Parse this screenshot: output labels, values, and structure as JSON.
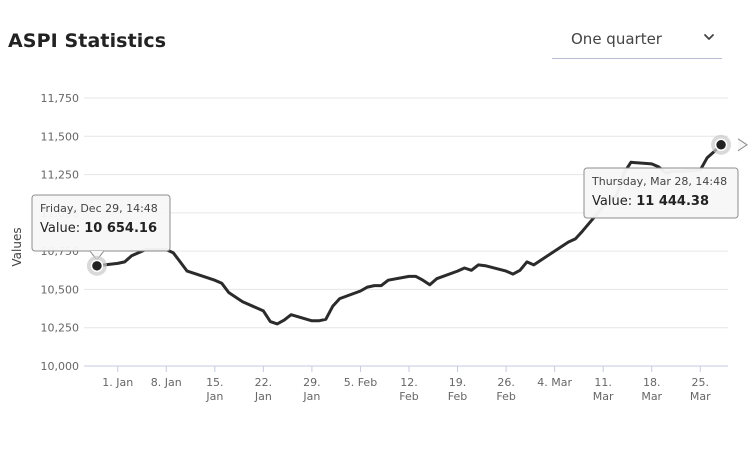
{
  "header": {
    "title": "ASPI Statistics",
    "period_selected": "One quarter",
    "period_icon": "chevron-down-icon"
  },
  "chart_data": {
    "type": "line",
    "title": "ASPI Statistics",
    "xlabel": "",
    "ylabel": "Values",
    "ylim": [
      10000,
      11750
    ],
    "yticks": [
      10000,
      10250,
      10500,
      10750,
      11000,
      11250,
      11500,
      11750
    ],
    "ytick_labels": [
      "10,000",
      "10,250",
      "10,500",
      "10,750",
      "11,000",
      "11,250",
      "11,500",
      "11,750"
    ],
    "xlim": [
      "2023-12-28",
      "2024-03-29"
    ],
    "xticks": [
      {
        "date": "2024-01-01",
        "line1": "1. Jan",
        "line2": ""
      },
      {
        "date": "2024-01-08",
        "line1": "8. Jan",
        "line2": ""
      },
      {
        "date": "2024-01-15",
        "line1": "15.",
        "line2": "Jan"
      },
      {
        "date": "2024-01-22",
        "line1": "22.",
        "line2": "Jan"
      },
      {
        "date": "2024-01-29",
        "line1": "29.",
        "line2": "Jan"
      },
      {
        "date": "2024-02-05",
        "line1": "5. Feb",
        "line2": ""
      },
      {
        "date": "2024-02-12",
        "line1": "12.",
        "line2": "Feb"
      },
      {
        "date": "2024-02-19",
        "line1": "19.",
        "line2": "Feb"
      },
      {
        "date": "2024-02-26",
        "line1": "26.",
        "line2": "Feb"
      },
      {
        "date": "2024-03-04",
        "line1": "4. Mar",
        "line2": ""
      },
      {
        "date": "2024-03-11",
        "line1": "11.",
        "line2": "Mar"
      },
      {
        "date": "2024-03-18",
        "line1": "18.",
        "line2": "Mar"
      },
      {
        "date": "2024-03-25",
        "line1": "25.",
        "line2": "Mar"
      }
    ],
    "grid": true,
    "legend": "none",
    "line_color": "#2b2b2b",
    "series": [
      {
        "points": [
          [
            "2023-12-29",
            10654.16
          ],
          [
            "2024-01-01",
            10670
          ],
          [
            "2024-01-02",
            10680
          ],
          [
            "2024-01-03",
            10720
          ],
          [
            "2024-01-04",
            10740
          ],
          [
            "2024-01-05",
            10760
          ],
          [
            "2024-01-08",
            10760
          ],
          [
            "2024-01-09",
            10740
          ],
          [
            "2024-01-10",
            10680
          ],
          [
            "2024-01-11",
            10620
          ],
          [
            "2024-01-12",
            10605
          ],
          [
            "2024-01-15",
            10560
          ],
          [
            "2024-01-16",
            10540
          ],
          [
            "2024-01-17",
            10480
          ],
          [
            "2024-01-18",
            10450
          ],
          [
            "2024-01-19",
            10420
          ],
          [
            "2024-01-22",
            10360
          ],
          [
            "2024-01-23",
            10290
          ],
          [
            "2024-01-24",
            10275
          ],
          [
            "2024-01-25",
            10300
          ],
          [
            "2024-01-26",
            10335
          ],
          [
            "2024-01-29",
            10295
          ],
          [
            "2024-01-30",
            10295
          ],
          [
            "2024-01-31",
            10305
          ],
          [
            "2024-02-01",
            10390
          ],
          [
            "2024-02-02",
            10440
          ],
          [
            "2024-02-05",
            10490
          ],
          [
            "2024-02-06",
            10515
          ],
          [
            "2024-02-07",
            10525
          ],
          [
            "2024-02-08",
            10525
          ],
          [
            "2024-02-09",
            10560
          ],
          [
            "2024-02-12",
            10585
          ],
          [
            "2024-02-13",
            10585
          ],
          [
            "2024-02-14",
            10560
          ],
          [
            "2024-02-15",
            10530
          ],
          [
            "2024-02-16",
            10570
          ],
          [
            "2024-02-19",
            10620
          ],
          [
            "2024-02-20",
            10640
          ],
          [
            "2024-02-21",
            10625
          ],
          [
            "2024-02-22",
            10660
          ],
          [
            "2024-02-23",
            10655
          ],
          [
            "2024-02-26",
            10620
          ],
          [
            "2024-02-27",
            10600
          ],
          [
            "2024-02-28",
            10625
          ],
          [
            "2024-02-29",
            10680
          ],
          [
            "2024-03-01",
            10660
          ],
          [
            "2024-03-04",
            10750
          ],
          [
            "2024-03-05",
            10780
          ],
          [
            "2024-03-06",
            10810
          ],
          [
            "2024-03-07",
            10830
          ],
          [
            "2024-03-08",
            10880
          ],
          [
            "2024-03-11",
            11040
          ],
          [
            "2024-03-12",
            11080
          ],
          [
            "2024-03-13",
            11120
          ],
          [
            "2024-03-14",
            11260
          ],
          [
            "2024-03-15",
            11330
          ],
          [
            "2024-03-18",
            11320
          ],
          [
            "2024-03-19",
            11300
          ],
          [
            "2024-03-20",
            11260
          ],
          [
            "2024-03-21",
            11270
          ],
          [
            "2024-03-22",
            11270
          ],
          [
            "2024-03-25",
            11280
          ],
          [
            "2024-03-26",
            11360
          ],
          [
            "2024-03-27",
            11400
          ],
          [
            "2024-03-28",
            11444.38
          ]
        ]
      }
    ],
    "tooltips": [
      {
        "date": "2023-12-29",
        "header": "Friday, Dec 29, 14:48",
        "value_label": "Value:",
        "value": "10 654.16"
      },
      {
        "date": "2024-03-28",
        "header": "Thursday, Mar 28, 14:48",
        "value_label": "Value:",
        "value": "11 444.38"
      }
    ]
  }
}
